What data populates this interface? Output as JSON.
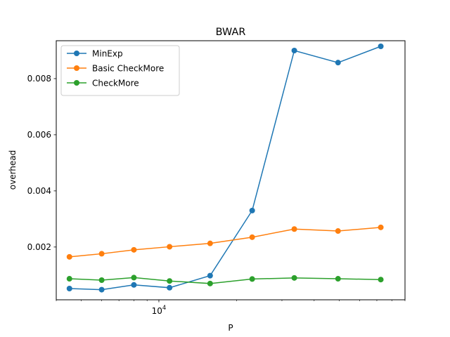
{
  "chart_data": {
    "type": "line",
    "title": "BWAR",
    "xlabel": "P",
    "ylabel": "overhead",
    "x_scale": "log",
    "xlim": [
      4000,
      90000
    ],
    "ylim": [
      0.00012,
      0.00935
    ],
    "x_ticks": [
      {
        "value": 10000,
        "base": "10",
        "exp": "4"
      }
    ],
    "y_ticks": [
      {
        "value": 0.002,
        "label": "0.002"
      },
      {
        "value": 0.004,
        "label": "0.004"
      },
      {
        "value": 0.006,
        "label": "0.006"
      },
      {
        "value": 0.008,
        "label": "0.008"
      }
    ],
    "grid": false,
    "legend_position": "top-left",
    "x": [
      4500,
      6000,
      8000,
      11000,
      15800,
      23000,
      33500,
      49500,
      72500
    ],
    "series": [
      {
        "name": "MinExp",
        "color": "#1f77b4",
        "values": [
          0.00052,
          0.00048,
          0.00065,
          0.00055,
          0.00098,
          0.0033,
          0.009,
          0.00857,
          0.00915
        ]
      },
      {
        "name": "Basic CheckMore",
        "color": "#ff7f0e",
        "values": [
          0.00165,
          0.00176,
          0.0019,
          0.00201,
          0.00213,
          0.00235,
          0.00264,
          0.00257,
          0.0027
        ]
      },
      {
        "name": "CheckMore",
        "color": "#2ca02c",
        "values": [
          0.00087,
          0.00082,
          0.00091,
          0.00079,
          0.0007,
          0.00086,
          0.0009,
          0.00087,
          0.00084
        ]
      }
    ]
  }
}
